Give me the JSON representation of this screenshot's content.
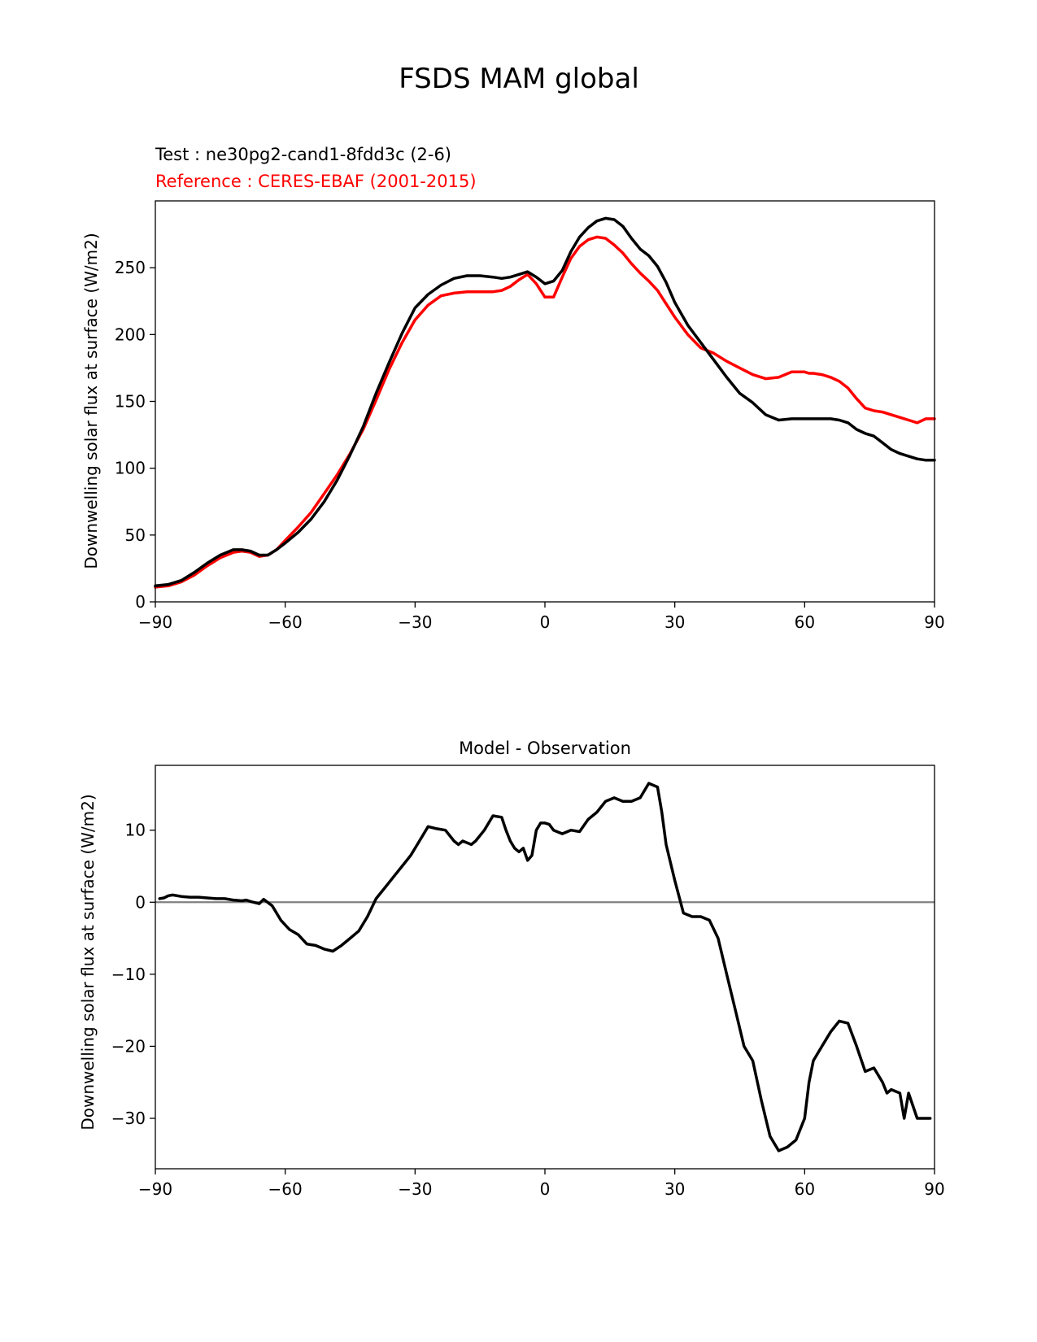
{
  "figure": {
    "title": "FSDS MAM global"
  },
  "chart_data": [
    {
      "type": "line",
      "title_test": "Test : ne30pg2-cand1-8fdd3c (2-6)",
      "title_reference": "Reference : CERES-EBAF (2001-2015)",
      "xlabel": "",
      "ylabel": "Downwelling solar flux at surface (W/m2)",
      "xlim": [
        -90,
        90
      ],
      "ylim": [
        0,
        300
      ],
      "xticks": [
        -90,
        -60,
        -30,
        0,
        30,
        60,
        90
      ],
      "xtick_labels": [
        "−90",
        "−60",
        "−30",
        "0",
        "30",
        "60",
        "90"
      ],
      "yticks": [
        0,
        50,
        100,
        150,
        200,
        250
      ],
      "ytick_labels": [
        "0",
        "50",
        "100",
        "150",
        "200",
        "250"
      ],
      "grid": false,
      "colors": {
        "test": "#000000",
        "reference": "#ff0000"
      },
      "series": [
        {
          "key": "test",
          "x": [
            -90,
            -87,
            -84,
            -81,
            -78,
            -75,
            -72,
            -70,
            -68,
            -66,
            -64,
            -62,
            -60,
            -57,
            -54,
            -51,
            -48,
            -45,
            -42,
            -39,
            -36,
            -33,
            -30,
            -27,
            -24,
            -21,
            -18,
            -15,
            -12,
            -10,
            -8,
            -6,
            -4,
            -2,
            0,
            2,
            4,
            6,
            8,
            10,
            12,
            14,
            16,
            18,
            20,
            22,
            24,
            26,
            28,
            30,
            33,
            36,
            39,
            42,
            45,
            48,
            51,
            54,
            57,
            60,
            62,
            64,
            66,
            68,
            70,
            72,
            74,
            76,
            78,
            80,
            82,
            84,
            86,
            88,
            90
          ],
          "values": [
            12,
            13,
            16,
            22,
            29,
            35,
            39,
            39,
            38,
            35,
            35,
            39,
            44,
            52,
            62,
            75,
            91,
            110,
            131,
            156,
            179,
            201,
            220,
            230,
            237,
            242,
            244,
            244,
            243,
            242,
            243,
            245,
            247,
            243,
            238,
            240,
            248,
            262,
            273,
            280,
            285,
            287,
            286,
            281,
            272,
            264,
            259,
            251,
            239,
            224,
            207,
            194,
            181,
            168,
            156,
            149,
            140,
            136,
            137,
            137,
            137,
            137,
            137,
            136,
            134,
            129,
            126,
            124,
            119,
            114,
            111,
            109,
            107,
            106,
            106
          ],
          "data_label": "Test"
        },
        {
          "key": "reference",
          "x": [
            -90,
            -87,
            -84,
            -81,
            -78,
            -75,
            -72,
            -70,
            -68,
            -66,
            -64,
            -62,
            -60,
            -57,
            -54,
            -51,
            -48,
            -45,
            -42,
            -39,
            -36,
            -33,
            -30,
            -27,
            -24,
            -21,
            -18,
            -15,
            -12,
            -10,
            -8,
            -6,
            -4,
            -2,
            0,
            2,
            4,
            6,
            8,
            10,
            12,
            14,
            16,
            18,
            20,
            22,
            24,
            26,
            28,
            30,
            33,
            36,
            39,
            42,
            45,
            48,
            51,
            54,
            57,
            60,
            61,
            62,
            64,
            66,
            68,
            70,
            72,
            74,
            76,
            78,
            80,
            82,
            84,
            86,
            88,
            90
          ],
          "values": [
            11,
            12,
            15,
            20,
            27,
            33,
            37,
            38,
            37,
            34,
            35,
            39,
            46,
            56,
            67,
            81,
            95,
            111,
            129,
            151,
            174,
            194,
            211,
            222,
            229,
            231,
            232,
            232,
            232,
            233,
            236,
            241,
            245,
            238,
            228,
            228,
            243,
            257,
            266,
            271,
            273,
            272,
            267,
            261,
            253,
            246,
            240,
            233,
            223,
            213,
            200,
            190,
            186,
            180,
            175,
            170,
            167,
            168,
            172,
            172,
            171,
            171,
            170,
            168,
            165,
            160,
            152,
            145,
            143,
            142,
            140,
            138,
            136,
            134,
            137,
            137
          ],
          "data_label": "Reference"
        }
      ]
    },
    {
      "type": "line",
      "title": "Model - Observation",
      "xlabel": "",
      "ylabel": "Downwelling solar flux at surface (W/m2)",
      "xlim": [
        -90,
        90
      ],
      "ylim": [
        -37,
        19
      ],
      "xticks": [
        -90,
        -60,
        -30,
        0,
        30,
        60,
        90
      ],
      "xtick_labels": [
        "−90",
        "−60",
        "−30",
        "0",
        "30",
        "60",
        "90"
      ],
      "yticks": [
        -30,
        -20,
        -10,
        0,
        10
      ],
      "ytick_labels": [
        "−30",
        "−20",
        "−10",
        "0",
        "10"
      ],
      "grid": false,
      "zero_line_color": "#808080",
      "colors": {
        "diff": "#000000"
      },
      "series": [
        {
          "key": "diff",
          "x": [
            -89,
            -88,
            -87,
            -86,
            -84,
            -82,
            -80,
            -78,
            -76,
            -74,
            -72,
            -70,
            -69,
            -68,
            -66,
            -65,
            -63,
            -61,
            -59,
            -57,
            -55,
            -53,
            -51,
            -49,
            -47,
            -45,
            -43,
            -41,
            -39,
            -37,
            -35,
            -33,
            -31,
            -29,
            -27,
            -25,
            -23,
            -21,
            -20,
            -19,
            -17,
            -16,
            -14,
            -12,
            -10,
            -9,
            -8,
            -7,
            -6,
            -5,
            -4,
            -3,
            -2,
            -1,
            0,
            1,
            2,
            4,
            6,
            8,
            10,
            12,
            14,
            16,
            18,
            20,
            22,
            24,
            26,
            27,
            28,
            30,
            32,
            34,
            36,
            38,
            40,
            42,
            44,
            46,
            48,
            50,
            52,
            54,
            56,
            58,
            60,
            61,
            62,
            64,
            66,
            68,
            70,
            72,
            74,
            76,
            78,
            79,
            80,
            82,
            83,
            84,
            86,
            88,
            89
          ],
          "values": [
            0.5,
            0.6,
            0.9,
            1.0,
            0.8,
            0.7,
            0.7,
            0.6,
            0.5,
            0.5,
            0.3,
            0.2,
            0.3,
            0.1,
            -0.2,
            0.4,
            -0.5,
            -2.5,
            -3.8,
            -4.5,
            -5.8,
            -6.0,
            -6.5,
            -6.8,
            -6.0,
            -5.0,
            -4.0,
            -2.0,
            0.5,
            2.0,
            3.5,
            5.0,
            6.5,
            8.5,
            10.5,
            10.2,
            10.0,
            8.5,
            8.0,
            8.5,
            8.0,
            8.5,
            10.0,
            12.0,
            11.8,
            10.0,
            8.5,
            7.5,
            7.0,
            7.5,
            5.8,
            6.5,
            10.0,
            11.0,
            11.0,
            10.8,
            10.0,
            9.5,
            10.0,
            9.8,
            11.5,
            12.5,
            14.0,
            14.5,
            14.0,
            14.0,
            14.5,
            16.5,
            16.0,
            12.5,
            8.0,
            3.0,
            -1.5,
            -2.0,
            -2.0,
            -2.5,
            -5.0,
            -10.0,
            -15.0,
            -20.0,
            -22.0,
            -27.5,
            -32.5,
            -34.5,
            -34.0,
            -33.0,
            -30.0,
            -25.0,
            -22.0,
            -20.0,
            -18.0,
            -16.5,
            -16.8,
            -20.0,
            -23.5,
            -23.0,
            -25.0,
            -26.5,
            -26.0,
            -26.5,
            -30.0,
            -26.5,
            -30.0,
            -30.0,
            -30.0
          ],
          "data_label": "Model - Observation"
        }
      ]
    }
  ]
}
